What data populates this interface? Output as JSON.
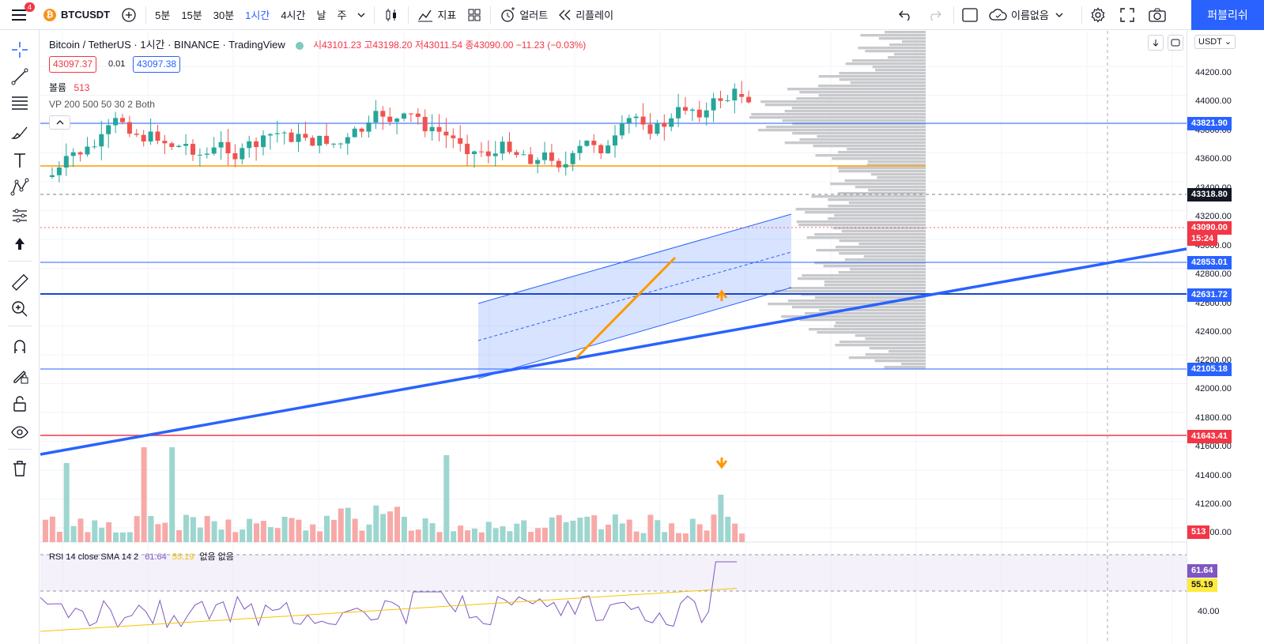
{
  "topbar": {
    "badge": "4",
    "symbol": "BTCUSDT",
    "intervals": [
      "5분",
      "15분",
      "30분",
      "1시간",
      "4시간",
      "날",
      "주"
    ],
    "active_interval": "1시간",
    "indicators_label": "지표",
    "alert_label": "얼러트",
    "replay_label": "리플레이",
    "layout_name": "이름없음",
    "publish_label": "퍼블리쉬"
  },
  "legend": {
    "title": "Bitcoin / TetherUS · 1시간 · BINANCE · TradingView",
    "ohlc": "시43101.23 고43198.20 저43011.54 종43090.00 −11.23 (−0.03%)",
    "bid": "43097.37",
    "spread": "0.01",
    "ask": "43097.38",
    "volume_label": "볼륨",
    "volume_value": "513",
    "vp_label": "VP 200 500 50 30 2 Both"
  },
  "rsi_legend": {
    "name": "RSI 14 close SMA 14 2",
    "rsi": "61.64",
    "sma": "55.19",
    "extra": "없음 없음"
  },
  "price_axis": {
    "currency": "USDT",
    "ticks": [
      "44200.00",
      "44000.00",
      "43800.00",
      "43600.00",
      "43400.00",
      "43200.00",
      "43000.00",
      "42800.00",
      "42600.00",
      "42400.00",
      "42200.00",
      "42000.00",
      "41800.00",
      "41600.00",
      "41400.00",
      "41200.00",
      "41000.00"
    ],
    "tags": [
      {
        "text": "43821.90",
        "color": "#2962ff"
      },
      {
        "text": "43318.80",
        "color": "#131722"
      },
      {
        "text": "43090.00",
        "color": "#f23645"
      },
      {
        "text": "15:24",
        "color": "#f23645"
      },
      {
        "text": "42853.01",
        "color": "#2962ff"
      },
      {
        "text": "42631.72",
        "color": "#2962ff"
      },
      {
        "text": "42105.18",
        "color": "#2962ff"
      },
      {
        "text": "41643.41",
        "color": "#f23645"
      },
      {
        "text": "513",
        "color": "#f23645"
      },
      {
        "text": "61.64",
        "color": "#7e57c2"
      },
      {
        "text": "55.19",
        "color": "#ffeb3b"
      },
      {
        "text": "40.00",
        "color": "none"
      }
    ]
  },
  "colors": {
    "up": "#26a69a",
    "down": "#ef5350",
    "accent": "#2962ff",
    "orange": "#ff9800"
  }
}
